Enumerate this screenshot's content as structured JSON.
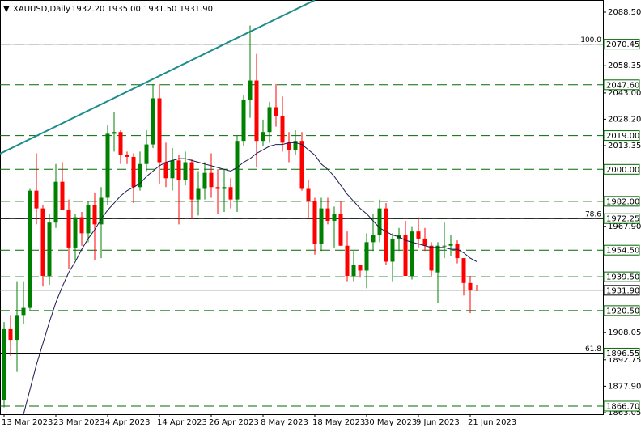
{
  "chart_data": {
    "type": "candlestick",
    "title": "XAUUSD,Daily",
    "header_ohlc": "1932.20 1935.00 1931.50 1931.90",
    "x": [
      "13 Mar 2023",
      null,
      null,
      null,
      null,
      null,
      null,
      null,
      "23 Mar 2023",
      null,
      null,
      null,
      null,
      null,
      null,
      null,
      "4 Apr 2023",
      null,
      null,
      null,
      null,
      null,
      null,
      null,
      "14 Apr 2023",
      null,
      null,
      null,
      null,
      null,
      null,
      null,
      "26 Apr 2023",
      null,
      null,
      null,
      null,
      null,
      null,
      null,
      "8 May 2023",
      null,
      null,
      null,
      null,
      null,
      null,
      null,
      "18 May 2023",
      null,
      null,
      null,
      null,
      null,
      null,
      null,
      "30 May 2023",
      null,
      null,
      null,
      null,
      null,
      null,
      null,
      "9 Jun 2023",
      null,
      null,
      null,
      null,
      null,
      null,
      null,
      "21 Jun 2023",
      null
    ],
    "open": [
      1870,
      1910,
      1904,
      1918,
      1922,
      1988,
      1978,
      1940,
      1970,
      1993,
      1977,
      1956,
      1973,
      1964,
      1980,
      1969,
      1984,
      2020,
      2021,
      2008,
      2007,
      1990,
      2003,
      2014,
      2040,
      2004,
      1995,
      2005,
      1994,
      2004,
      1983,
      1989,
      1998,
      1990,
      1989,
      1990,
      1983,
      2016,
      2039,
      2050,
      2016,
      2021,
      2035,
      2030,
      2015,
      2011,
      2016,
      1989,
      1982,
      1958,
      1978,
      1971,
      1975,
      1957,
      1940,
      1946,
      1943,
      1959,
      1963,
      1978,
      1948,
      1961,
      1963,
      1940,
      1965,
      1961,
      1957,
      1942,
      1957,
      1957,
      1958,
      1950,
      1936,
      1932.2
    ],
    "high": [
      1914,
      1918,
      1937,
      1937,
      1989,
      2009,
      1980,
      1975,
      2003,
      2004,
      1983,
      1975,
      1976,
      1982,
      1987,
      1990,
      2025,
      2032,
      2022,
      2010,
      2009,
      2010,
      2022,
      2048,
      2048,
      2015,
      2012,
      2008,
      2010,
      2006,
      1999,
      2004,
      2009,
      2000,
      2000,
      1995,
      2019,
      2042,
      2081,
      2065,
      2028,
      2038,
      2048,
      2041,
      2021,
      2022,
      2021,
      1994,
      1984,
      1984,
      1984,
      1979,
      1982,
      1965,
      1954,
      1946,
      1964,
      1975,
      1983,
      1981,
      1964,
      1967,
      1971,
      1968,
      1973,
      1967,
      1959,
      1959,
      1970,
      1963,
      1960,
      1950,
      1940,
      1935
    ],
    "low": [
      1866,
      1895,
      1886,
      1913,
      1921,
      1969,
      1934,
      1935,
      1967,
      1977,
      1944,
      1949,
      1957,
      1959,
      1949,
      1950,
      1980,
      2010,
      2003,
      2003,
      1981,
      1988,
      1999,
      2012,
      1992,
      1990,
      1988,
      1969,
      1991,
      1972,
      1974,
      1983,
      1984,
      1975,
      1976,
      1978,
      1976,
      2013,
      2029,
      2001,
      2013,
      2015,
      2024,
      2010,
      2004,
      2008,
      1988,
      1972,
      1952,
      1954,
      1969,
      1956,
      1957,
      1937,
      1937,
      1939,
      1933,
      1954,
      1959,
      1946,
      1937,
      1954,
      1940,
      1938,
      1956,
      1954,
      1940,
      1925,
      1950,
      1951,
      1947,
      1929,
      1919,
      1931.5
    ],
    "close": [
      1910,
      1904,
      1918,
      1922,
      1988,
      1978,
      1940,
      1970,
      1993,
      1977,
      1956,
      1973,
      1964,
      1980,
      1969,
      1984,
      2020,
      2021,
      2008,
      2007,
      1990,
      2003,
      2014,
      2040,
      2004,
      1995,
      2005,
      1994,
      2004,
      1983,
      1989,
      1998,
      1990,
      1989,
      1990,
      1983,
      2016,
      2039,
      2050,
      2016,
      2021,
      2035,
      2030,
      2015,
      2011,
      2016,
      1989,
      1982,
      1958,
      1978,
      1971,
      1975,
      1957,
      1940,
      1946,
      1943,
      1959,
      1963,
      1978,
      1948,
      1961,
      1963,
      1940,
      1965,
      1961,
      1957,
      1943,
      1957,
      1957,
      1958,
      1950,
      1936,
      1932,
      1931.9
    ],
    "up_color": "#008000",
    "down_color": "#ff0000",
    "ma": {
      "color": "#1a1a4e",
      "values": [
        null,
        null,
        null,
        1862,
        1876,
        1890,
        1902,
        1914,
        1925,
        1934,
        1942,
        1948,
        1955,
        1961,
        1966,
        1972,
        1977,
        1981,
        1985,
        1988,
        1990,
        1992,
        1996,
        1999,
        2002,
        2004,
        2005,
        2006,
        2006,
        2005,
        2004,
        2003,
        2002,
        2001,
        2000,
        1999,
        2001,
        2004,
        2006,
        2009,
        2011,
        2013,
        2014,
        2014,
        2015,
        2015,
        2014,
        2011,
        2008,
        2003,
        2000,
        1996,
        1991,
        1986,
        1982,
        1978,
        1975,
        1971,
        1967,
        1965,
        1963,
        1962,
        1960,
        1959,
        1958,
        1957,
        1956,
        1956,
        1956,
        1955,
        1955,
        1953,
        1950,
        1948
      ]
    },
    "trendline": {
      "color": "#1e8c8c",
      "start": [
        0,
        2008.8
      ],
      "end": [
        48,
        2095.3
      ]
    },
    "levels": [
      {
        "value": 2070.45,
        "label": "2070.45",
        "style": "solid",
        "fib_label": "100.0"
      },
      {
        "value": 2047.6,
        "label": "2047.60",
        "style": "dashed"
      },
      {
        "value": 2019,
        "label": "2019.00",
        "style": "dashed"
      },
      {
        "value": 2000,
        "label": "2000.00",
        "style": "dashed"
      },
      {
        "value": 1982,
        "label": "1982.00",
        "style": "dashed"
      },
      {
        "value": 1972.25,
        "label": "1972.25",
        "style": "solid",
        "fib_label": "78.6"
      },
      {
        "value": 1954.5,
        "label": "1954.50",
        "style": "dashed"
      },
      {
        "value": 1939.5,
        "label": "1939.50",
        "style": "dashed"
      },
      {
        "value": 1931.9,
        "label": "1931.90",
        "style": "current"
      },
      {
        "value": 1920.5,
        "label": "1920.50",
        "style": "dashed"
      },
      {
        "value": 1896.55,
        "label": "1896.55",
        "style": "solid",
        "fib_label": "61.8"
      },
      {
        "value": 1866.7,
        "label": "1866.70",
        "style": "dashed"
      }
    ],
    "level_color": "#006a00",
    "ylim": [
      1862.14,
      2095.33
    ],
    "yticks": [
      {
        "value": 2088.5,
        "label": "2088.50"
      },
      {
        "value": 2058.35,
        "label": "2058.35"
      },
      {
        "value": 2043,
        "label": "2043.00"
      },
      {
        "value": 2028.2,
        "label": "2028.20"
      },
      {
        "value": 2013.35,
        "label": "2013.35"
      },
      {
        "value": 1967.9,
        "label": "1967.90"
      },
      {
        "value": 1908.05,
        "label": "1908.05"
      },
      {
        "value": 1892.75,
        "label": "1892.75"
      },
      {
        "value": 1877.9,
        "label": "1877.90"
      },
      {
        "value": 1863.05,
        "label": "1863.05"
      }
    ]
  }
}
